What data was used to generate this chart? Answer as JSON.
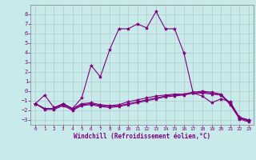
{
  "bg_color": "#c8eaea",
  "line_color": "#800080",
  "grid_color": "#b0c8c8",
  "xlabel": "Windchill (Refroidissement éolien,°C)",
  "xlabel_color": "#800080",
  "xtick_color": "#800080",
  "ytick_color": "#800080",
  "xlim": [
    -0.5,
    23.5
  ],
  "ylim": [
    -3.5,
    9.0
  ],
  "yticks": [
    -3,
    -2,
    -1,
    0,
    1,
    2,
    3,
    4,
    5,
    6,
    7,
    8
  ],
  "xticks": [
    0,
    1,
    2,
    3,
    4,
    5,
    6,
    7,
    8,
    9,
    10,
    11,
    12,
    13,
    14,
    15,
    16,
    17,
    18,
    19,
    20,
    21,
    22,
    23
  ],
  "line1_x": [
    0,
    1,
    2,
    3,
    4,
    5,
    6,
    7,
    8,
    9,
    10,
    11,
    12,
    13,
    14,
    15,
    16,
    17,
    18,
    19,
    20,
    21,
    22,
    23
  ],
  "line1_y": [
    -1.3,
    -0.4,
    -1.7,
    -1.3,
    -1.8,
    -0.7,
    2.7,
    1.5,
    4.3,
    6.5,
    6.5,
    7.0,
    6.6,
    8.3,
    6.5,
    6.5,
    4.0,
    -0.2,
    -0.5,
    -1.2,
    -0.8,
    -1.1,
    -2.8,
    -3.0
  ],
  "line2_x": [
    0,
    1,
    2,
    3,
    4,
    5,
    6,
    7,
    8,
    9,
    10,
    11,
    12,
    13,
    14,
    15,
    16,
    17,
    18,
    19,
    20,
    21,
    22,
    23
  ],
  "line2_y": [
    -1.3,
    -1.8,
    -1.8,
    -1.3,
    -1.8,
    -1.3,
    -1.2,
    -1.4,
    -1.5,
    -1.4,
    -1.1,
    -0.9,
    -0.7,
    -0.5,
    -0.4,
    -0.3,
    -0.3,
    -0.2,
    -0.2,
    -0.3,
    -0.4,
    -1.2,
    -2.7,
    -3.0
  ],
  "line3_x": [
    0,
    1,
    2,
    3,
    4,
    5,
    6,
    7,
    8,
    9,
    10,
    11,
    12,
    13,
    14,
    15,
    16,
    17,
    18,
    19,
    20,
    21,
    22,
    23
  ],
  "line3_y": [
    -1.3,
    -1.8,
    -1.8,
    -1.4,
    -1.9,
    -1.4,
    -1.3,
    -1.5,
    -1.6,
    -1.5,
    -1.3,
    -1.1,
    -0.9,
    -0.7,
    -0.5,
    -0.4,
    -0.3,
    -0.1,
    0.0,
    -0.1,
    -0.3,
    -1.3,
    -2.8,
    -3.1
  ],
  "line4_x": [
    0,
    1,
    2,
    3,
    4,
    5,
    6,
    7,
    8,
    9,
    10,
    11,
    12,
    13,
    14,
    15,
    16,
    17,
    18,
    19,
    20,
    21,
    22,
    23
  ],
  "line4_y": [
    -1.3,
    -1.9,
    -1.9,
    -1.5,
    -2.0,
    -1.5,
    -1.4,
    -1.6,
    -1.7,
    -1.6,
    -1.4,
    -1.2,
    -1.0,
    -0.8,
    -0.6,
    -0.5,
    -0.4,
    -0.2,
    -0.1,
    -0.2,
    -0.4,
    -1.4,
    -2.9,
    -3.2
  ],
  "marker": "*",
  "markersize": 3,
  "linewidth": 0.8
}
